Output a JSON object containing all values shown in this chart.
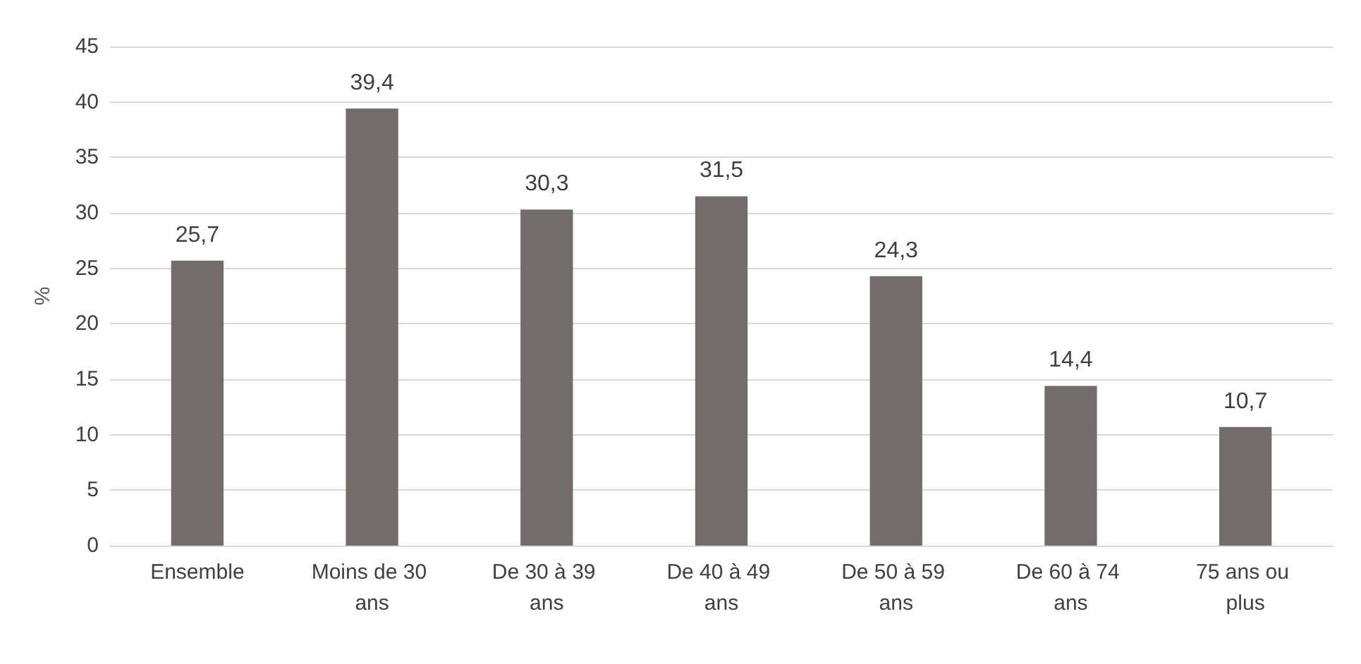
{
  "chart_data": {
    "type": "bar",
    "ylabel": "%",
    "categories": [
      "Ensemble",
      "Moins de 30 ans",
      "De 30 à 39 ans",
      "De 40 à 49 ans",
      "De 50 à 59 ans",
      "De 60 à 74 ans",
      "75 ans ou plus"
    ],
    "values": [
      25.7,
      39.4,
      30.3,
      31.5,
      24.3,
      14.4,
      10.7
    ],
    "value_labels": [
      "25,7",
      "39,4",
      "30,3",
      "31,5",
      "24,3",
      "14,4",
      "10,7"
    ],
    "color": "#726d6b",
    "ylim": [
      0,
      45
    ],
    "yticks": [
      0,
      5,
      10,
      15,
      20,
      25,
      30,
      35,
      40,
      45
    ],
    "grid": "y"
  }
}
